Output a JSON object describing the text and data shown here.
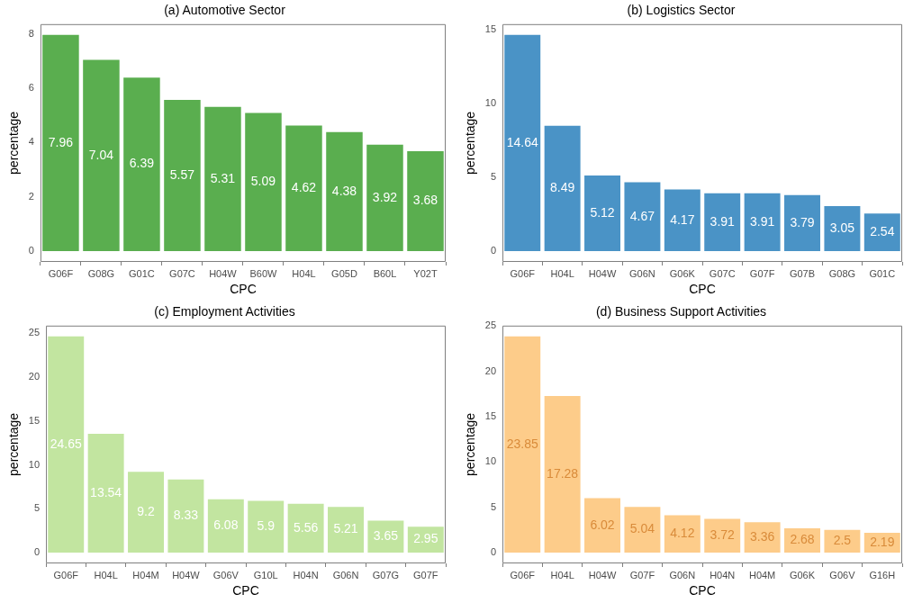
{
  "chart_data": [
    {
      "type": "bar",
      "title": "(a) Automotive Sector",
      "xlabel": "CPC",
      "ylabel": "percentage",
      "categories": [
        "G06F",
        "G08G",
        "G01C",
        "G07C",
        "H04W",
        "B60W",
        "H04L",
        "G05D",
        "B60L",
        "Y02T"
      ],
      "values": [
        7.96,
        7.04,
        6.39,
        5.57,
        5.31,
        5.09,
        4.62,
        4.38,
        3.92,
        3.68
      ],
      "color": "#5aae4f",
      "ylim": [
        -0.4,
        8.36
      ],
      "yticks": [
        0,
        2,
        4,
        6,
        8
      ],
      "data_labels": true
    },
    {
      "type": "bar",
      "title": "(b) Logistics Sector",
      "xlabel": "CPC",
      "ylabel": "percentage",
      "categories": [
        "G06F",
        "H04L",
        "H04W",
        "G06N",
        "G06K",
        "G07C",
        "G07F",
        "G07B",
        "G08G",
        "G01C"
      ],
      "values": [
        14.64,
        8.49,
        5.12,
        4.67,
        4.17,
        3.91,
        3.91,
        3.79,
        3.05,
        2.54
      ],
      "color": "#4a93c6",
      "ylim": [
        -0.73,
        15.37
      ],
      "yticks": [
        0,
        5,
        10,
        15
      ],
      "data_labels": true
    },
    {
      "type": "bar",
      "title": "(c) Employment Activities",
      "xlabel": "CPC",
      "ylabel": "percentage",
      "categories": [
        "G06F",
        "H04L",
        "H04M",
        "H04W",
        "G06V",
        "G10L",
        "H04N",
        "G06N",
        "G07G",
        "G07F"
      ],
      "values": [
        24.65,
        13.54,
        9.2,
        8.33,
        6.08,
        5.9,
        5.56,
        5.21,
        3.65,
        2.95
      ],
      "color": "#c2e5a0",
      "ylim": [
        -1.23,
        25.88
      ],
      "yticks": [
        0,
        5,
        10,
        15,
        20,
        25
      ],
      "data_labels": true
    },
    {
      "type": "bar",
      "title": "(d) Business Support Activities",
      "xlabel": "CPC",
      "ylabel": "percentage",
      "categories": [
        "G06F",
        "H04L",
        "H04W",
        "G07F",
        "G06N",
        "H04N",
        "H04M",
        "G06K",
        "G06V",
        "G16H"
      ],
      "values": [
        23.85,
        17.28,
        6.02,
        5.04,
        4.12,
        3.72,
        3.36,
        2.68,
        2.5,
        2.19
      ],
      "color": "#fdcc8a",
      "ylim": [
        -1.19,
        25.04
      ],
      "yticks": [
        0,
        5,
        10,
        15,
        20,
        25
      ],
      "data_labels": true
    }
  ]
}
